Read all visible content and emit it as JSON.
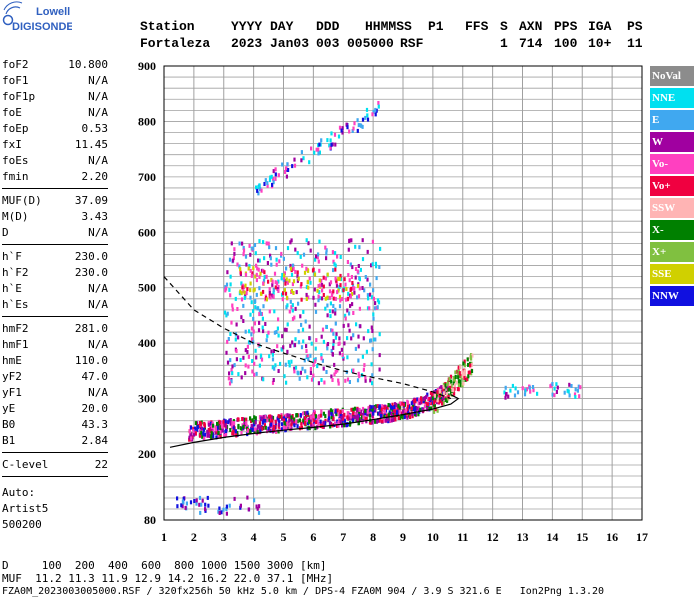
{
  "logo": {
    "line1": "Lowell",
    "line2": "DIGISONDE"
  },
  "header": {
    "row1": [
      "Station",
      "YYYY DAY",
      "DDD",
      "HHMMSS",
      "P1",
      "FFS",
      "S",
      "AXN",
      "PPS",
      "IGA",
      "PS"
    ],
    "row2": [
      "Fortaleza",
      "2023 Jan03",
      "003",
      "005000",
      "RSF",
      "1",
      "714",
      "100",
      "10+",
      "11"
    ]
  },
  "params": {
    "group1": [
      {
        "label": "foF2",
        "value": "10.800"
      },
      {
        "label": "foF1",
        "value": "N/A"
      },
      {
        "label": "foF1p",
        "value": "N/A"
      },
      {
        "label": "foE",
        "value": "N/A"
      },
      {
        "label": "foEp",
        "value": "0.53"
      },
      {
        "label": "fxI",
        "value": "11.45"
      },
      {
        "label": "foEs",
        "value": "N/A"
      },
      {
        "label": "fmin",
        "value": "2.20"
      }
    ],
    "group2": [
      {
        "label": "MUF(D)",
        "value": "37.09"
      },
      {
        "label": "M(D)",
        "value": "3.43"
      },
      {
        "label": "D",
        "value": "N/A"
      }
    ],
    "group3": [
      {
        "label": "h`F",
        "value": "230.0"
      },
      {
        "label": "h`F2",
        "value": "230.0"
      },
      {
        "label": "h`E",
        "value": "N/A"
      },
      {
        "label": "h`Es",
        "value": "N/A"
      }
    ],
    "group4": [
      {
        "label": "hmF2",
        "value": "281.0"
      },
      {
        "label": "hmF1",
        "value": "N/A"
      },
      {
        "label": "hmE",
        "value": "110.0"
      },
      {
        "label": "yF2",
        "value": "47.0"
      },
      {
        "label": "yF1",
        "value": "N/A"
      },
      {
        "label": "yE",
        "value": "20.0"
      },
      {
        "label": "B0",
        "value": "43.3"
      },
      {
        "label": "B1",
        "value": "2.84"
      }
    ],
    "group5": [
      {
        "label": "C-level",
        "value": "22"
      }
    ],
    "auto": [
      "Auto:",
      "Artist5",
      "500200"
    ]
  },
  "legend": [
    {
      "label": "NoVal",
      "color": "#8c8c8c"
    },
    {
      "label": "NNE",
      "color": "#00e0f0"
    },
    {
      "label": "E",
      "color": "#40a8f0"
    },
    {
      "label": "W",
      "color": "#a000a0"
    },
    {
      "label": "Vo-",
      "color": "#ff40c0"
    },
    {
      "label": "Vo+",
      "color": "#f00040"
    },
    {
      "label": "SSW",
      "color": "#ffb4b4"
    },
    {
      "label": "X-",
      "color": "#008000"
    },
    {
      "label": "X+",
      "color": "#80c040"
    },
    {
      "label": "SSE",
      "color": "#d0d000"
    },
    {
      "label": "NNW",
      "color": "#1010e0"
    }
  ],
  "footer": {
    "d_row": "D     100  200  400  600  800 1000 1500 3000 [km]",
    "muf_row": "MUF  11.2 11.3 11.9 12.9 14.2 16.2 22.0 37.1 [MHz]",
    "file_row": "FZA0M_2023003005000.RSF / 320fx256h 50 kHz 5.0 km / DPS-4 FZA0M 904 / 3.9 S 321.6 E   Ion2Png 1.3.20"
  },
  "chart_data": {
    "type": "scatter",
    "xlim": [
      1,
      17
    ],
    "ylim": [
      80,
      900
    ],
    "xticks": [
      1,
      2,
      3,
      4,
      5,
      6,
      7,
      8,
      9,
      10,
      11,
      12,
      13,
      14,
      15,
      16,
      17
    ],
    "yticks": [
      80,
      200,
      300,
      400,
      500,
      600,
      700,
      800,
      900
    ],
    "grid": true,
    "profile_solid": [
      [
        1.2,
        212
      ],
      [
        2,
        221
      ],
      [
        3,
        230
      ],
      [
        4,
        237
      ],
      [
        5,
        243
      ],
      [
        6,
        248
      ],
      [
        7,
        254
      ],
      [
        8,
        262
      ],
      [
        9,
        271
      ],
      [
        10,
        281
      ],
      [
        10.6,
        290
      ],
      [
        10.85,
        300
      ],
      [
        10.6,
        307
      ]
    ],
    "profile_dashed": [
      [
        1,
        520
      ],
      [
        2,
        460
      ],
      [
        3,
        427
      ],
      [
        4,
        400
      ],
      [
        5,
        382
      ],
      [
        6,
        365
      ],
      [
        7,
        350
      ],
      [
        8,
        338
      ],
      [
        9,
        327
      ],
      [
        10,
        312
      ],
      [
        10.6,
        300
      ]
    ],
    "clusters": [
      {
        "name": "F-trace",
        "x_range": [
          1.8,
          10.5
        ],
        "h_range": [
          228,
          305
        ],
        "colors": [
          "#f00040",
          "#ff40c0",
          "#a000a0",
          "#008000",
          "#1010e0"
        ]
      },
      {
        "name": "F-upper",
        "x_range": [
          10,
          11.3
        ],
        "h_range": [
          290,
          390
        ],
        "colors": [
          "#f00040",
          "#008000",
          "#80c040",
          "#ffb4b4"
        ]
      },
      {
        "name": "Spread-F",
        "x_range": [
          3,
          8.2
        ],
        "h_range": [
          330,
          590
        ],
        "colors": [
          "#a000a0",
          "#ff40c0",
          "#40a8f0",
          "#00e0f0"
        ]
      },
      {
        "name": "Multi-hop",
        "x_range": [
          3.5,
          7.5
        ],
        "h_range": [
          480,
          540
        ],
        "colors": [
          "#f00040",
          "#d0d000",
          "#ff40c0"
        ]
      },
      {
        "name": "Second-hop",
        "x_range": [
          4,
          8.2
        ],
        "h_range": [
          680,
          840
        ],
        "colors": [
          "#40a8f0",
          "#00e0f0",
          "#a000a0",
          "#ff40c0",
          "#1010e0"
        ]
      },
      {
        "name": "Oblique",
        "x_range": [
          12.3,
          14.9
        ],
        "h_range": [
          305,
          330
        ],
        "colors": [
          "#40a8f0",
          "#00e0f0",
          "#a000a0",
          "#ff40c0"
        ]
      },
      {
        "name": "Low",
        "x_range": [
          1.4,
          4.2
        ],
        "h_range": [
          95,
          125
        ],
        "colors": [
          "#40a8f0",
          "#1010e0",
          "#a000a0"
        ]
      }
    ]
  }
}
